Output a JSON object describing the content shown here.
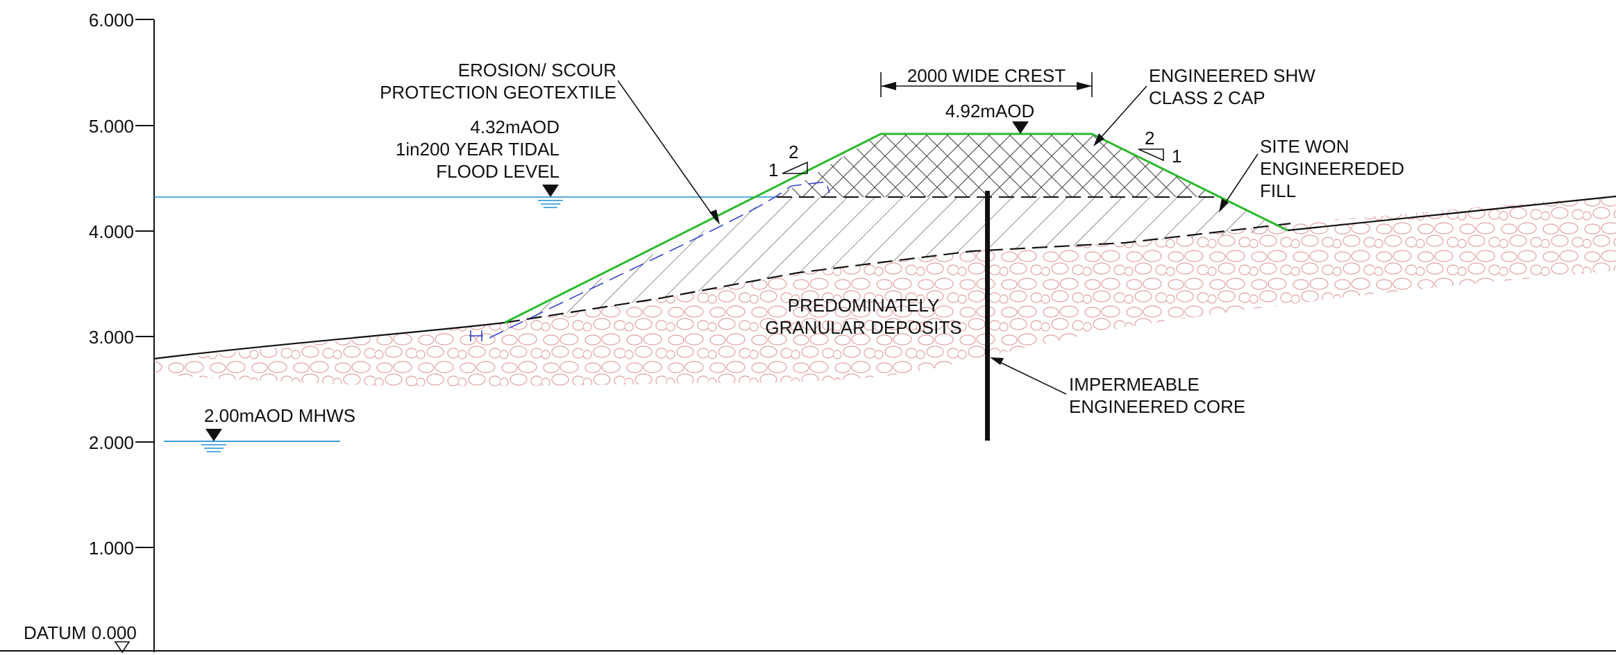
{
  "axis": {
    "ticks": [
      "6.000",
      "5.000",
      "4.000",
      "3.000",
      "2.000",
      "1.000"
    ],
    "datum_label": "DATUM 0.000"
  },
  "labels": {
    "geotextile": [
      "EROSION/ SCOUR",
      "PROTECTION GEOTEXTILE"
    ],
    "flood_level": [
      "4.32mAOD",
      "1in200 YEAR TIDAL",
      "FLOOD LEVEL"
    ],
    "crest_width": "2000 WIDE CREST",
    "crest_level": "4.92mAOD",
    "cap": [
      "ENGINEERED SHW",
      "CLASS 2 CAP"
    ],
    "fill": [
      "SITE WON",
      "ENGINEEREDED",
      "FILL"
    ],
    "deposits": [
      "PREDOMINATELY",
      "GRANULAR DEPOSITS"
    ],
    "core": [
      "IMPERMEABLE",
      "ENGINEERED CORE"
    ],
    "mhws": "2.00mAOD MHWS",
    "slope_left": {
      "rise": "1",
      "run": "2"
    },
    "slope_right": {
      "rise": "1",
      "run": "2"
    }
  },
  "colors": {
    "line": "#111111",
    "embankment_outline": "#2db82d",
    "water": "#1f8fd6",
    "gravel": "#e0a0a0",
    "geotextile": "#3344cc",
    "hatch": "#444444"
  }
}
